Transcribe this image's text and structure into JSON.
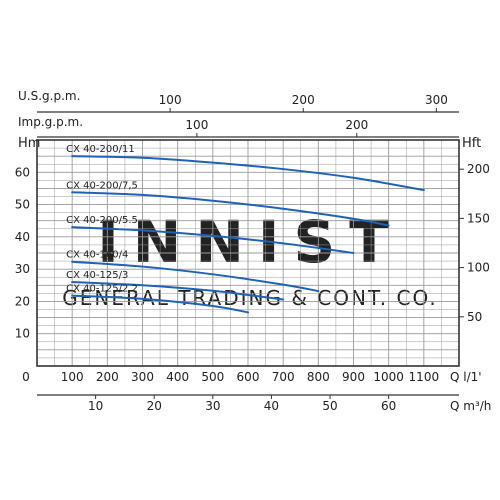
{
  "chart_data": {
    "type": "line",
    "top_axes": [
      {
        "label": "U.S.g.p.m.",
        "ticks": [
          100,
          200,
          300
        ],
        "tick_labels": [
          "100",
          "200",
          "300"
        ],
        "xlim": [
          0,
          316.98
        ]
      },
      {
        "label": "Imp.g.p.m.",
        "ticks": [
          100,
          200
        ],
        "tick_labels": [
          "100",
          "200"
        ],
        "xlim": [
          0,
          263.94
        ]
      }
    ],
    "x_primary": {
      "label": "Q l/1'",
      "ticks": [
        100,
        200,
        300,
        400,
        500,
        600,
        700,
        800,
        900,
        1000,
        1100
      ],
      "tick_labels": [
        "100",
        "200",
        "300",
        "400",
        "500",
        "600",
        "700",
        "800",
        "900",
        "1000",
        "1100"
      ],
      "zero_label": "0",
      "xlim": [
        0,
        1200
      ]
    },
    "x_secondary": {
      "label": "Q m³/h",
      "ticks": [
        10,
        20,
        30,
        40,
        50,
        60
      ],
      "tick_labels": [
        "10",
        "20",
        "30",
        "40",
        "50",
        "60"
      ],
      "xlim": [
        0,
        72
      ]
    },
    "y_left": {
      "label": "Hm",
      "ticks": [
        10,
        20,
        30,
        40,
        50,
        60
      ],
      "tick_labels": [
        "10",
        "20",
        "30",
        "40",
        "50",
        "60"
      ],
      "ylim": [
        0,
        70
      ]
    },
    "y_right": {
      "label": "Hft",
      "ticks": [
        50,
        100,
        150,
        200
      ],
      "tick_labels": [
        "50",
        "100",
        "150",
        "200"
      ],
      "ylim": [
        0,
        229.66
      ]
    },
    "grid": true,
    "series": [
      {
        "name": "CX 40-200/11",
        "x": [
          100,
          300,
          500,
          700,
          900,
          1100
        ],
        "y": [
          65.0,
          64.5,
          63.0,
          61.0,
          58.3,
          54.5
        ]
      },
      {
        "name": "CX 40-200/7,5",
        "x": [
          100,
          300,
          500,
          700,
          900,
          1000
        ],
        "y": [
          53.8,
          53.0,
          51.2,
          48.7,
          45.6,
          43.5
        ]
      },
      {
        "name": "CX 40-200/5.5",
        "x": [
          100,
          300,
          500,
          700,
          900
        ],
        "y": [
          43.0,
          42.0,
          40.3,
          38.0,
          35.0
        ]
      },
      {
        "name": "CX 40-160/4",
        "x": [
          100,
          300,
          500,
          700,
          800
        ],
        "y": [
          32.3,
          30.8,
          28.4,
          25.2,
          23.2
        ]
      },
      {
        "name": "CX 40-125/3",
        "x": [
          100,
          300,
          500,
          600,
          700
        ],
        "y": [
          26.0,
          25.0,
          23.3,
          22.0,
          20.6
        ]
      },
      {
        "name": "CX 40-125/2.2",
        "x": [
          100,
          300,
          500,
          600
        ],
        "y": [
          21.8,
          20.8,
          18.6,
          16.6
        ]
      }
    ],
    "watermark": "INNIST GENERAL TRADING & CONT. CO.",
    "colors": {
      "curve": "#1f63b8",
      "grid": "#9a9a9a",
      "axis": "#333333"
    }
  }
}
